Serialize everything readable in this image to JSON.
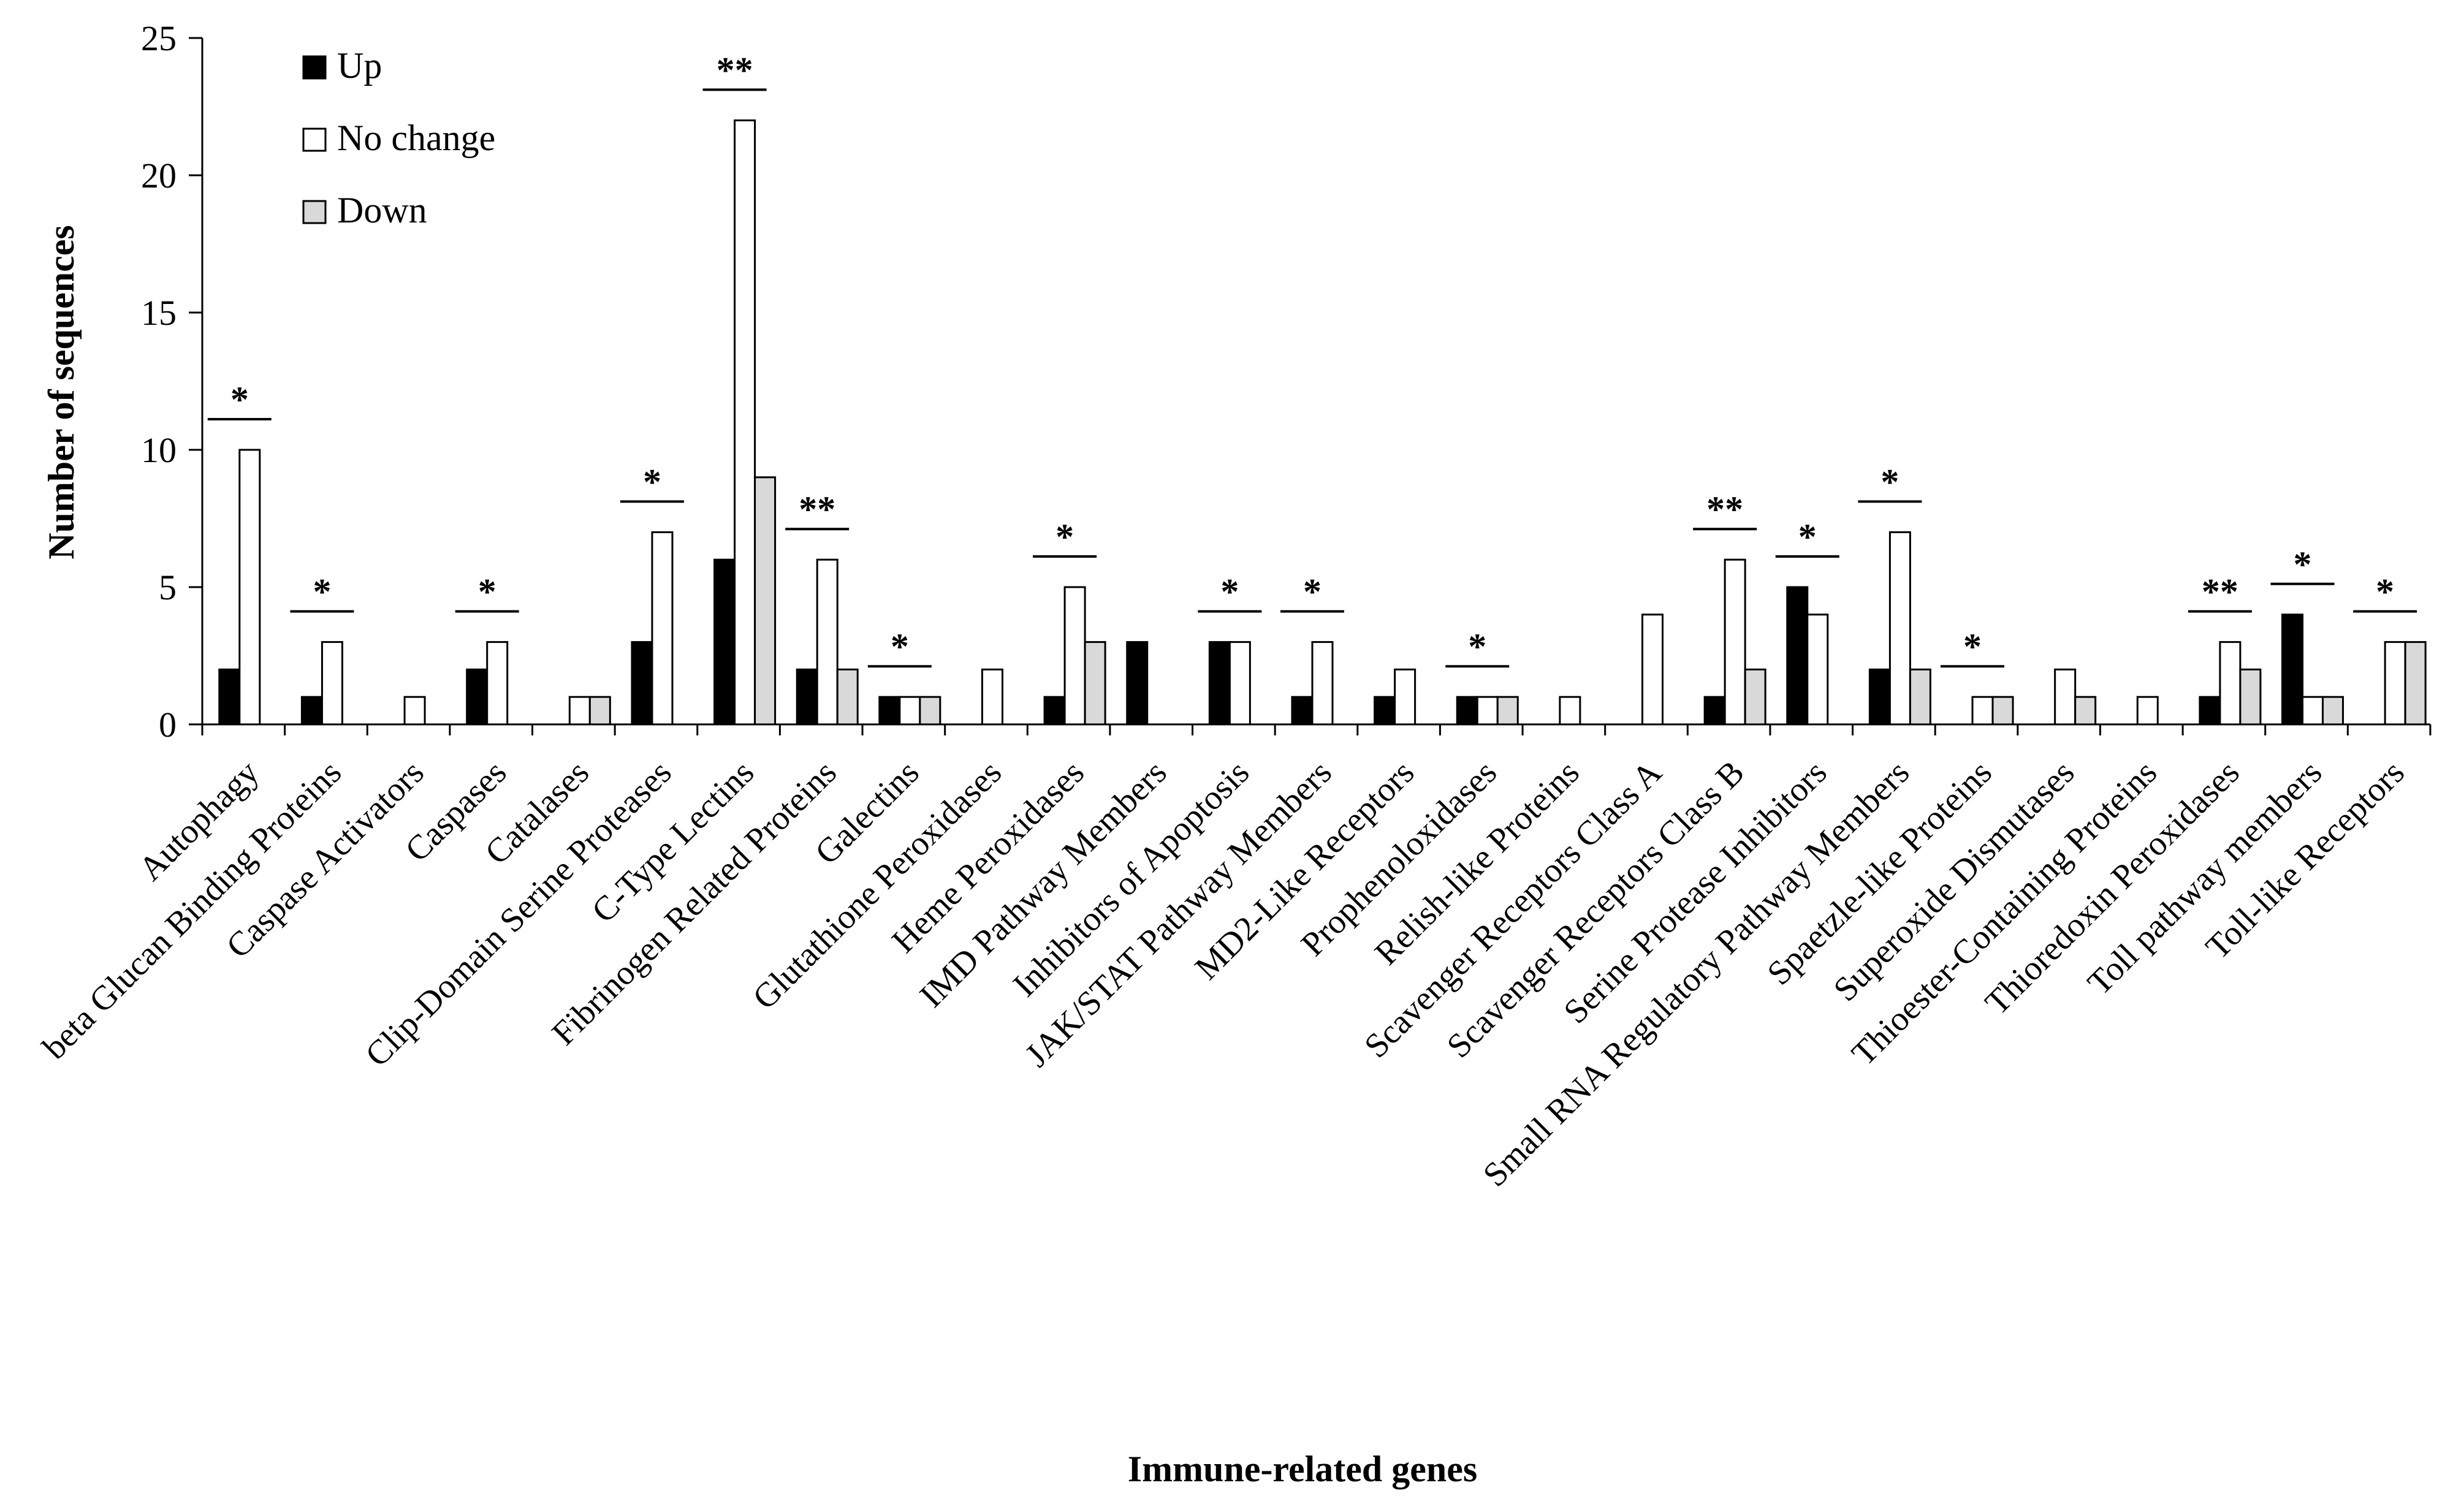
{
  "chart_data": {
    "type": "bar",
    "title": "",
    "xlabel": "Immune-related genes",
    "ylabel": "Number of sequences",
    "ylim": [
      0,
      25
    ],
    "yticks": [
      0,
      5,
      10,
      15,
      20,
      25
    ],
    "grid": false,
    "legend_position": "top-left",
    "categories": [
      "Autophagy",
      "beta Glucan Binding Proteins",
      "Caspase Activators",
      "Caspases",
      "Catalases",
      "Clip-Domain Serine Proteases",
      "C-Type Lectins",
      "Fibrinogen Related Proteins",
      "Galectins",
      "Glutathione Peroxidases",
      "Heme Peroxidases",
      "IMD Pathway Members",
      "Inhibitors of Apoptosis",
      "JAK/STAT Pathway Members",
      "MD2-Like Receptors",
      "Prophenoloxidases",
      "Relish-like Proteins",
      "Scavenger Receptors Class A",
      "Scavenger Receptors Class B",
      "Serine Protease Inhibitors",
      "Small RNA Regulatory Pathway Members",
      "Spaetzle-like Proteins",
      "Superoxide Dismutases",
      "Thioester-Containing Proteins",
      "Thioredoxin Peroxidases",
      "Toll pathway members",
      "Toll-like Receptors"
    ],
    "series": [
      {
        "name": "Up",
        "color": "#000000",
        "values": [
          2,
          1,
          0,
          2,
          0,
          3,
          6,
          2,
          1,
          0,
          1,
          3,
          3,
          1,
          1,
          1,
          0,
          0,
          1,
          5,
          2,
          0,
          0,
          0,
          1,
          4,
          0
        ]
      },
      {
        "name": "No change",
        "color": "#ffffff",
        "values": [
          10,
          3,
          1,
          3,
          1,
          7,
          22,
          6,
          1,
          2,
          5,
          0,
          3,
          3,
          2,
          1,
          1,
          4,
          6,
          4,
          7,
          1,
          2,
          1,
          3,
          1,
          3
        ]
      },
      {
        "name": "Down",
        "color": "#d9d9d9",
        "values": [
          0,
          0,
          0,
          0,
          1,
          0,
          9,
          2,
          1,
          0,
          3,
          0,
          0,
          0,
          0,
          1,
          0,
          0,
          2,
          0,
          2,
          1,
          1,
          0,
          2,
          1,
          3
        ]
      }
    ],
    "annotations": [
      "*",
      "*",
      "",
      "*",
      "",
      "*",
      "**",
      "**",
      "*",
      "",
      "*",
      "",
      "*",
      "*",
      "",
      "*",
      "",
      "",
      "**",
      "*",
      "*",
      "*",
      "",
      "",
      "**",
      "*",
      "*"
    ]
  }
}
